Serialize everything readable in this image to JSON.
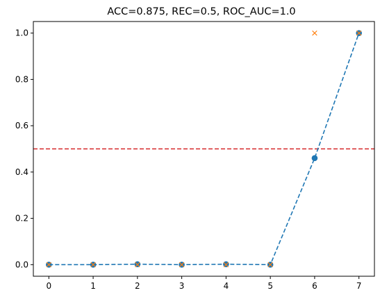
{
  "chart_data": {
    "type": "line",
    "title": "ACC=0.875, REC=0.5, ROC_AUC=1.0",
    "xlabel": "",
    "ylabel": "",
    "xlim": [
      -0.35,
      7.35
    ],
    "ylim": [
      -0.05,
      1.05
    ],
    "xticks": [
      0,
      1,
      2,
      3,
      4,
      5,
      6,
      7
    ],
    "xtick_labels": [
      "0",
      "1",
      "2",
      "3",
      "4",
      "5",
      "6",
      "7"
    ],
    "yticks": [
      0.0,
      0.2,
      0.4,
      0.6,
      0.8,
      1.0
    ],
    "ytick_labels": [
      "0.0",
      "0.2",
      "0.4",
      "0.6",
      "0.8",
      "1.0"
    ],
    "grid": false,
    "series": [
      {
        "kind": "dashed-line-with-circle-markers",
        "color": "#1f77b4",
        "x": [
          0,
          1,
          2,
          3,
          4,
          5,
          6,
          7
        ],
        "y": [
          0.0,
          0.0,
          0.002,
          0.0,
          0.002,
          0.0,
          0.46,
          1.0
        ]
      },
      {
        "kind": "x-markers",
        "color": "#ff7f0e",
        "x": [
          0,
          1,
          2,
          3,
          4,
          5,
          6,
          7
        ],
        "y": [
          0,
          0,
          0,
          0,
          0,
          0,
          1,
          1
        ]
      }
    ],
    "hlines": [
      {
        "y": 0.5,
        "color": "#d62728",
        "style": "dashed"
      }
    ]
  }
}
